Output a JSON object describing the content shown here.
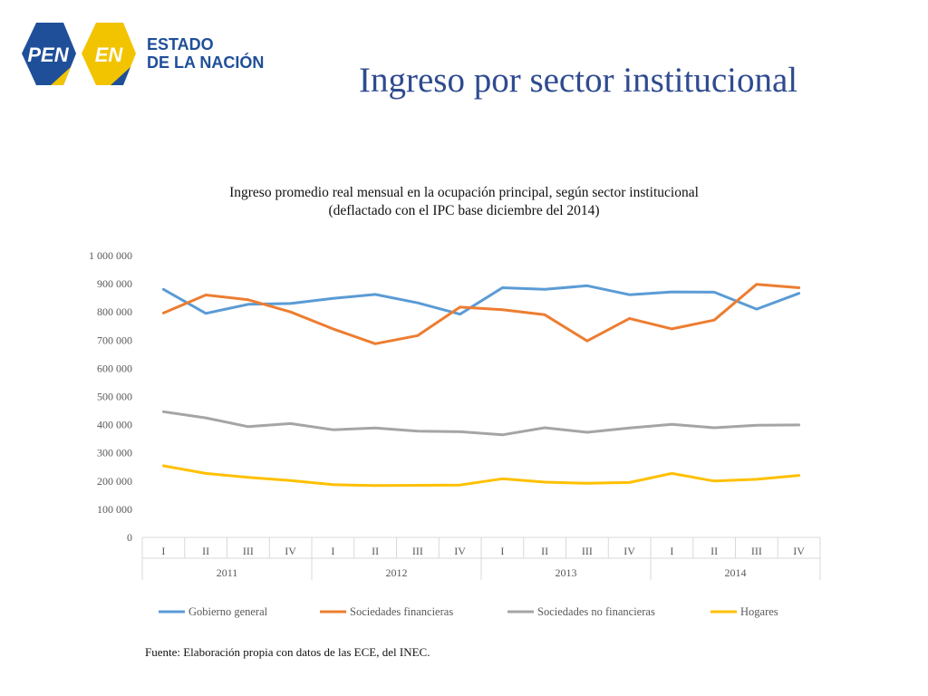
{
  "logo": {
    "pen_text": "PEN",
    "en_text": "EN",
    "line1": "ESTADO",
    "line2": "DE LA NACIÓN",
    "colors": {
      "blue": "#1f4f99",
      "yellow": "#f2c400"
    }
  },
  "page": {
    "title": "Ingreso por sector institucional"
  },
  "chart_data": {
    "type": "line",
    "title_line1": "Ingreso promedio real mensual en la ocupación principal, según sector institucional",
    "title_line2": "(deflactado con el IPC base diciembre del 2014)",
    "y_ticks": [
      "0",
      "100 000",
      "200 000",
      "300 000",
      "400 000",
      "500 000",
      "600 000",
      "700 000",
      "800 000",
      "900 000",
      "1 000 000"
    ],
    "ylim": [
      0,
      1000000
    ],
    "categories": [
      "I",
      "II",
      "III",
      "IV",
      "I",
      "II",
      "III",
      "IV",
      "I",
      "II",
      "III",
      "IV",
      "I",
      "II",
      "III",
      "IV"
    ],
    "groups": [
      "2011",
      "2012",
      "2013",
      "2014"
    ],
    "series": [
      {
        "name": "Gobierno general",
        "color": "#5b9bd5",
        "values": [
          880000,
          795000,
          827000,
          830000,
          848000,
          862000,
          832000,
          792000,
          886000,
          880000,
          893000,
          861000,
          871000,
          870000,
          810000,
          866000
        ]
      },
      {
        "name": "Sociedades financieras",
        "color": "#ed7d31",
        "values": [
          796000,
          860000,
          843000,
          800000,
          740000,
          687000,
          716000,
          817000,
          808000,
          790000,
          697000,
          777000,
          740000,
          771000,
          898000,
          886000
        ]
      },
      {
        "name": "Sociedades no financieras",
        "color": "#a5a5a5",
        "values": [
          446000,
          424000,
          393000,
          404000,
          382000,
          388000,
          377000,
          375000,
          364000,
          389000,
          373000,
          388000,
          401000,
          389000,
          398000,
          399000
        ]
      },
      {
        "name": "Hogares",
        "color": "#ffc000",
        "values": [
          254000,
          227000,
          213000,
          202000,
          187000,
          184000,
          185000,
          186000,
          208000,
          196000,
          192000,
          195000,
          227000,
          200000,
          206000,
          220000
        ]
      }
    ],
    "legend_position": "bottom",
    "grid": false
  },
  "source": {
    "text": "Fuente: Elaboración propia con datos de las ECE, del INEC."
  }
}
